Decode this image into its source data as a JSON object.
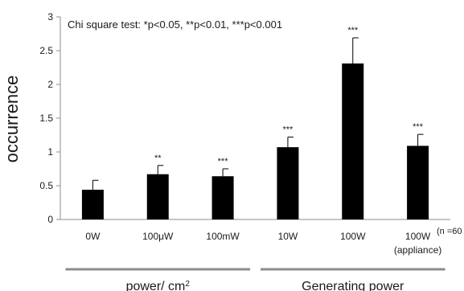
{
  "chart_data": {
    "type": "bar",
    "annotation": "Chi square test: *p<0.05, **p<0.01, ***p<0.001",
    "ylabel": "occurrence",
    "ylim": [
      0,
      3
    ],
    "yticks": [
      "0",
      "0.5",
      "1",
      "1.5",
      "2",
      "2.5",
      "3"
    ],
    "categories": [
      {
        "label": "0W",
        "sublabel": ""
      },
      {
        "label": "100μW",
        "sublabel": ""
      },
      {
        "label": "100mW",
        "sublabel": ""
      },
      {
        "label": "10W",
        "sublabel": ""
      },
      {
        "label": "100W",
        "sublabel": ""
      },
      {
        "label": "100W",
        "sublabel": "(appliance)"
      }
    ],
    "values": [
      0.44,
      0.67,
      0.64,
      1.07,
      2.31,
      1.09
    ],
    "errors": [
      0.14,
      0.13,
      0.11,
      0.15,
      0.38,
      0.17
    ],
    "significance": [
      "",
      "**",
      "***",
      "***",
      "***",
      "***"
    ],
    "sample_size": "(n =60",
    "groups": [
      {
        "label": "power/ cm",
        "superscript": "2",
        "categories": [
          0,
          1,
          2
        ]
      },
      {
        "label": "Generating power",
        "superscript": "",
        "categories": [
          3,
          4,
          5
        ]
      }
    ],
    "grid": false,
    "colors": {
      "bar": "#000000",
      "axis": "#8c8c8c",
      "group_line": "#8c8c8c",
      "text": "#1a1a1a"
    }
  }
}
